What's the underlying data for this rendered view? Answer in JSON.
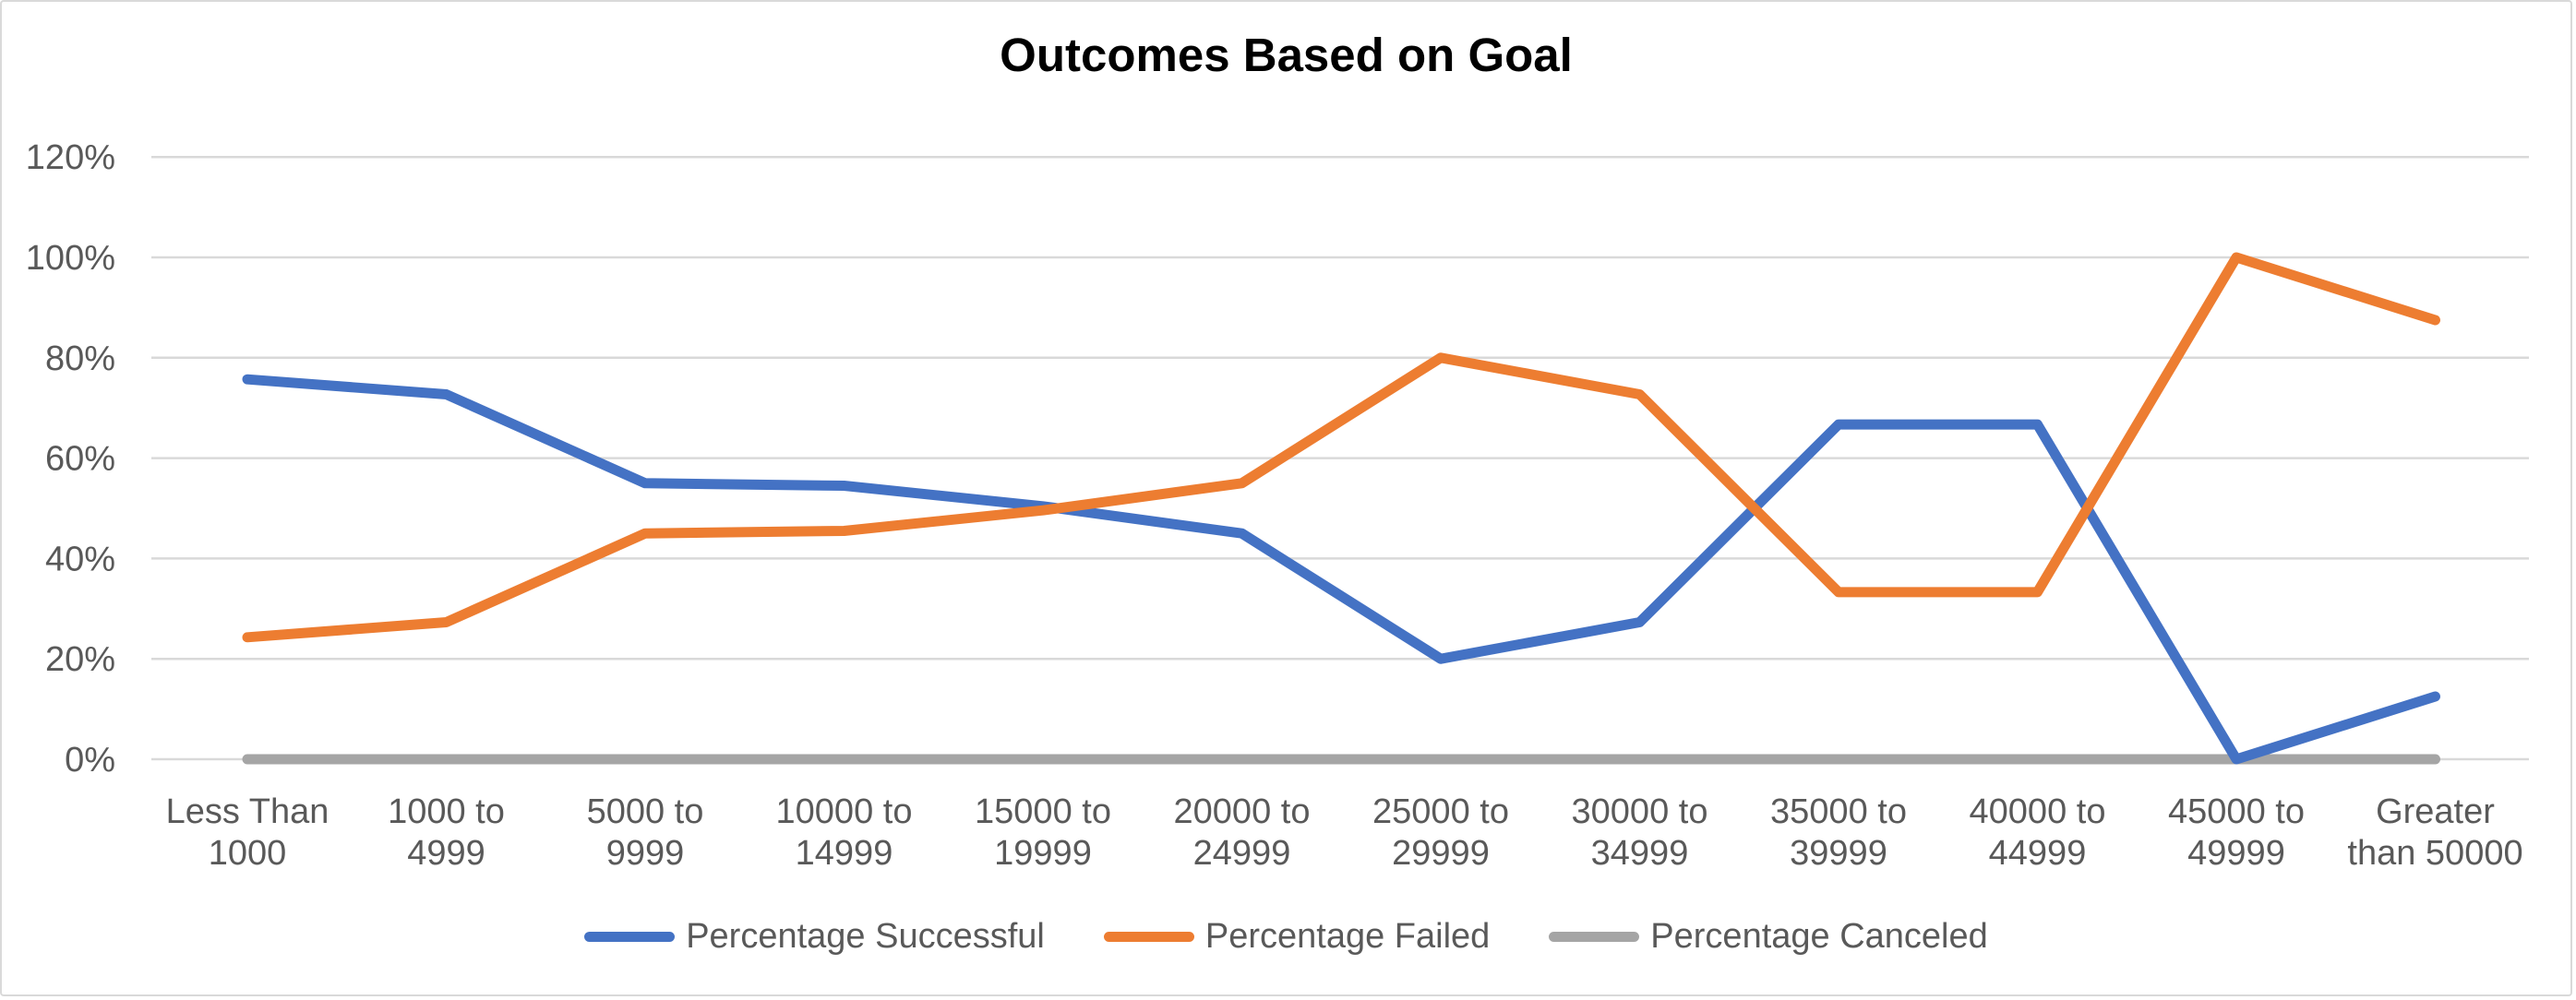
{
  "title": "Outcomes Based on Goal",
  "chart_data": {
    "type": "line",
    "title": "Outcomes Based on Goal",
    "categories": [
      [
        "Less Than",
        "1000"
      ],
      [
        "1000 to",
        "4999"
      ],
      [
        "5000 to",
        "9999"
      ],
      [
        "10000 to",
        "14999"
      ],
      [
        "15000 to",
        "19999"
      ],
      [
        "20000 to",
        "24999"
      ],
      [
        "25000 to",
        "29999"
      ],
      [
        "30000 to",
        "34999"
      ],
      [
        "35000 to",
        "39999"
      ],
      [
        "40000 to",
        "44999"
      ],
      [
        "45000 to",
        "49999"
      ],
      [
        "Greater",
        "than 50000"
      ]
    ],
    "series": [
      {
        "name": "Percentage Successful",
        "color": "#4472C4",
        "values": [
          75.7,
          72.7,
          55,
          54.5,
          50.4,
          45,
          20,
          27.3,
          66.7,
          66.7,
          0,
          12.5
        ]
      },
      {
        "name": "Percentage Failed",
        "color": "#ED7D31",
        "values": [
          24.3,
          27.3,
          45,
          45.5,
          49.6,
          55,
          80,
          72.7,
          33.3,
          33.3,
          100,
          87.5
        ]
      },
      {
        "name": "Percentage Canceled",
        "color": "#A5A5A5",
        "values": [
          0,
          0,
          0,
          0,
          0,
          0,
          0,
          0,
          0,
          0,
          0,
          0
        ]
      }
    ],
    "xlabel": "",
    "ylabel": "",
    "ylim": [
      0,
      120
    ],
    "ytick_step": 20,
    "ytick_labels": [
      "0%",
      "20%",
      "40%",
      "60%",
      "80%",
      "100%",
      "120%"
    ],
    "grid": "horizontal",
    "legend_position": "bottom",
    "colors": {
      "gridline": "#D9D9D9",
      "axis_text": "#595959",
      "title_text": "#000000",
      "background": "#FFFFFF"
    }
  }
}
